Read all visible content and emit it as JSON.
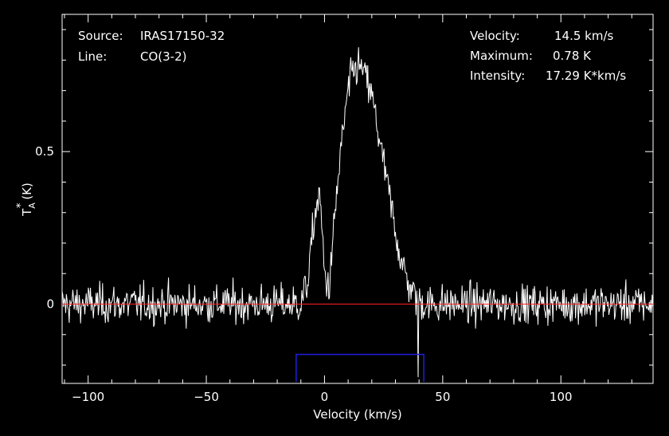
{
  "info": {
    "source_label": "Source:",
    "source_value": "IRAS17150-32",
    "line_label": "Line:",
    "line_value": "CO(3-2)",
    "velocity_label": "Velocity:",
    "velocity_value": "14.5 km/s",
    "maximum_label": "Maximum:",
    "maximum_value": "0.78 K",
    "intensity_label": "Intensity:",
    "intensity_value": "17.29 K*km/s"
  },
  "chart_data": {
    "type": "line",
    "xlabel": "Velocity (km/s)",
    "ylabel_main": "T",
    "ylabel_sub": "A",
    "ylabel_sup": "*",
    "ylabel_unit": "(K)",
    "xlim": [
      -111,
      139
    ],
    "ylim": [
      -0.26,
      0.95
    ],
    "x_ticks": [
      {
        "value": -100,
        "label": "−100"
      },
      {
        "value": -50,
        "label": "−50"
      },
      {
        "value": 0,
        "label": "0"
      },
      {
        "value": 50,
        "label": "50"
      },
      {
        "value": 100,
        "label": "100"
      }
    ],
    "y_ticks": [
      {
        "value": 0,
        "label": "0"
      },
      {
        "value": 0.5,
        "label": "0.5"
      }
    ],
    "baseline": 0,
    "integration_window": [
      -12,
      42
    ],
    "noise_rms": 0.045,
    "series": [
      {
        "color": "#ffffff",
        "x": [
          -111,
          -10,
          -7,
          -4,
          -2,
          0,
          2,
          5,
          8,
          10,
          12,
          14,
          16,
          18,
          20,
          22,
          24,
          26,
          28,
          30,
          32,
          34,
          36,
          38,
          40,
          43,
          139
        ],
        "y": [
          0.0,
          0.0,
          0.08,
          0.3,
          0.36,
          0.1,
          0.05,
          0.35,
          0.58,
          0.7,
          0.76,
          0.78,
          0.77,
          0.73,
          0.68,
          0.6,
          0.5,
          0.42,
          0.33,
          0.24,
          0.16,
          0.1,
          0.06,
          0.03,
          0.01,
          0.0,
          0.0
        ]
      }
    ],
    "colors": {
      "background": "#000000",
      "axes": "#ffffff",
      "spectrum": "#ffffff",
      "baseline": "#ff2020",
      "window": "#1f1fe0"
    }
  }
}
